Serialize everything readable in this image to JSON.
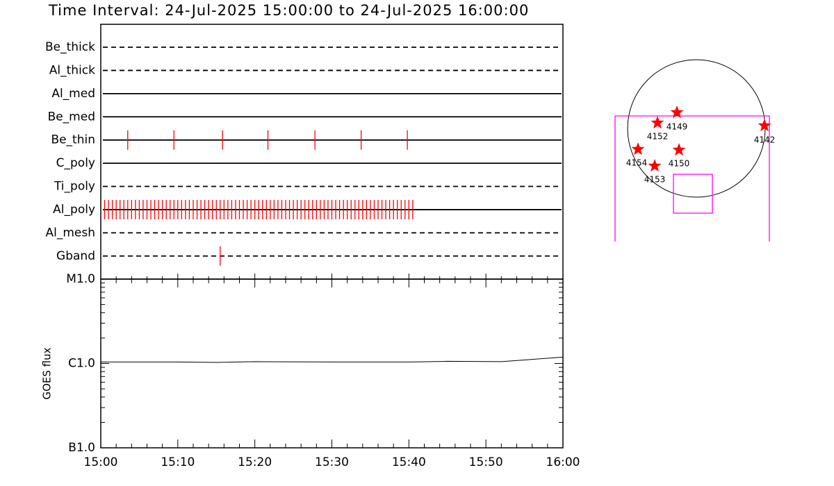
{
  "title": "Time Interval: 24-Jul-2025 15:00:00 to 24-Jul-2025 16:00:00",
  "chart_data": [
    {
      "type": "timeline",
      "categories": [
        "Be_thick",
        "Al_thick",
        "Al_med",
        "Be_med",
        "Be_thin",
        "C_poly",
        "Ti_poly",
        "Al_poly",
        "Al_mesh",
        "Gband"
      ],
      "line_styles": [
        "dashed",
        "dashed",
        "solid",
        "solid",
        "solid",
        "solid",
        "dashed",
        "solid",
        "dashed",
        "dashed"
      ],
      "events": [
        [],
        [],
        [],
        [],
        [
          3.5,
          9.5,
          15.8,
          21.7,
          27.8,
          33.8,
          39.8
        ],
        [],
        [],
        [
          0.5,
          1,
          1.5,
          2,
          2.5,
          3,
          3.5,
          4,
          4.5,
          5,
          5.5,
          6,
          6.5,
          7,
          7.5,
          8,
          8.5,
          9,
          9.5,
          10,
          10.5,
          11,
          11.5,
          12,
          12.5,
          13,
          13.5,
          14,
          14.5,
          15,
          15.5,
          16,
          16.5,
          17,
          17.5,
          18,
          18.5,
          19,
          19.5,
          20,
          20.5,
          21,
          21.5,
          22,
          22.5,
          23,
          23.5,
          24,
          24.5,
          25,
          25.5,
          26,
          26.5,
          27,
          27.5,
          28,
          28.5,
          29,
          29.5,
          30,
          30.5,
          31,
          31.5,
          32,
          32.5,
          33,
          33.5,
          34,
          34.5,
          35,
          35.5,
          36,
          36.5,
          37,
          37.5,
          38,
          38.5,
          39,
          39.5,
          40,
          40.5
        ],
        [],
        [
          15.5
        ]
      ],
      "color": "#ff0000",
      "xlim": [
        0,
        60
      ]
    },
    {
      "type": "line",
      "y_label": "GOES flux",
      "log_scale": true,
      "xlim": [
        0,
        60
      ],
      "xticks": [
        {
          "value": 0,
          "label": "15:00"
        },
        {
          "value": 10,
          "label": "15:10"
        },
        {
          "value": 20,
          "label": "15:20"
        },
        {
          "value": 30,
          "label": "15:30"
        },
        {
          "value": 40,
          "label": "15:40"
        },
        {
          "value": 50,
          "label": "15:50"
        },
        {
          "value": 60,
          "label": "16:00"
        }
      ],
      "ylim": [
        1e-07,
        1e-05
      ],
      "yticks": [
        {
          "value": 1e-07,
          "label": "B1.0"
        },
        {
          "value": 1e-06,
          "label": "C1.0"
        },
        {
          "value": 1e-05,
          "label": "M1.0"
        }
      ],
      "x": [
        0,
        10,
        15,
        20,
        30,
        40,
        45,
        52,
        55,
        60
      ],
      "values": [
        1.04e-06,
        1.04e-06,
        1.03e-06,
        1.05e-06,
        1.04e-06,
        1.04e-06,
        1.06e-06,
        1.05e-06,
        1.1e-06,
        1.19e-06
      ],
      "color": "#000000"
    }
  ],
  "map": {
    "regions": [
      {
        "label": "4149"
      },
      {
        "label": "4152"
      },
      {
        "label": "4142"
      },
      {
        "label": "4154"
      },
      {
        "label": "4150"
      },
      {
        "label": "4153"
      }
    ],
    "star_color": "#ff0000",
    "fov_color": "#ff00ff"
  }
}
